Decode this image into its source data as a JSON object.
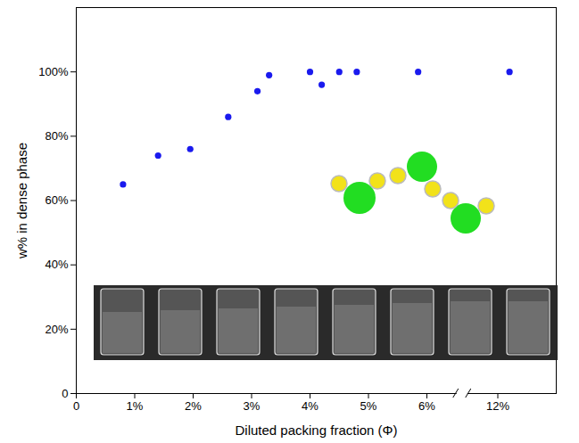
{
  "chart_data": {
    "type": "scatter",
    "xlabel": "Diluted packing fraction (Φ)",
    "ylabel": "w% in dense phase",
    "x": [
      0.8,
      1.4,
      1.95,
      2.6,
      3.1,
      3.3,
      4.0,
      4.2,
      4.5,
      4.8,
      5.85,
      12.2
    ],
    "values": [
      65,
      74,
      76,
      86,
      94,
      99,
      100,
      96,
      100,
      100,
      100,
      100
    ],
    "color": "#1a1aee",
    "marker": "circle",
    "xlim": [
      0,
      13
    ],
    "ylim": [
      0,
      120
    ],
    "xticks": [
      0,
      {
        "value": 1,
        "label": "1%"
      },
      {
        "value": 2,
        "label": "2%"
      },
      {
        "value": 3,
        "label": "3%"
      },
      {
        "value": 4,
        "label": "4%"
      },
      {
        "value": 5,
        "label": "5%"
      },
      {
        "value": 6,
        "label": "6%"
      },
      {
        "value": 12,
        "label": "12%"
      }
    ],
    "yticks": [
      0,
      {
        "value": 20,
        "label": "20%"
      },
      {
        "value": 40,
        "label": "40%"
      },
      {
        "value": 60,
        "label": "60%"
      },
      {
        "value": 80,
        "label": "80%"
      },
      {
        "value": 100,
        "label": "100%"
      }
    ]
  }
}
